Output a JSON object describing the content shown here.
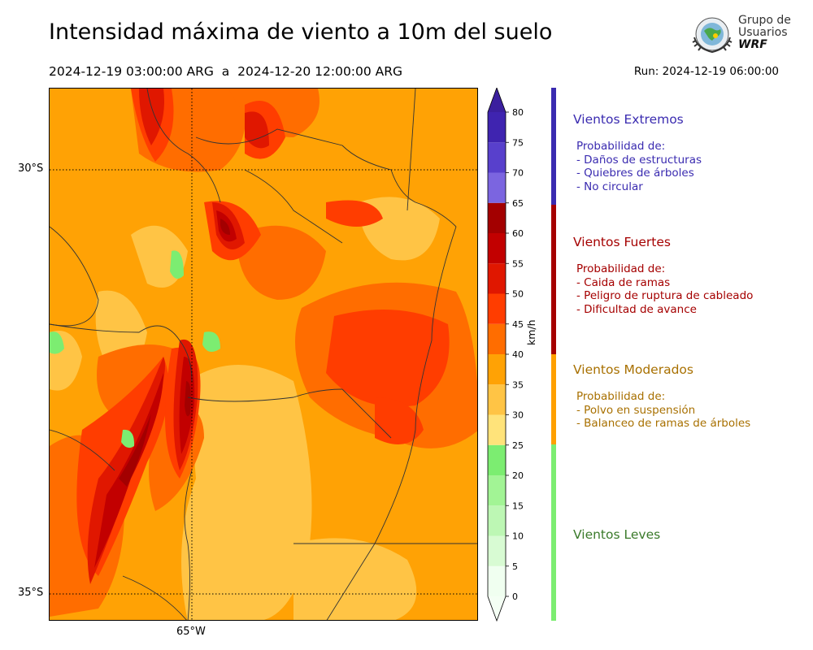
{
  "title": "Intensidad máxima de viento a 10m del suelo",
  "period": "2024-12-19 03:00:00 ARG  a  2024-12-20 12:00:00 ARG",
  "run": "Run: 2024-12-19 06:00:00",
  "logo": {
    "line1": "Grupo de",
    "line2": "Usuarios",
    "line3": "WRF"
  },
  "map": {
    "lat_labels": [
      "30°S",
      "35°S"
    ],
    "lon_labels": [
      "65°W"
    ],
    "background_level": 35
  },
  "chart_data": {
    "type": "heatmap",
    "title": "Intensidad máxima de viento a 10m del suelo",
    "colorbar_label": "km/h",
    "colorbar_range": [
      0,
      80
    ],
    "colorbar_ticks": [
      0,
      5,
      10,
      15,
      20,
      25,
      30,
      35,
      40,
      45,
      50,
      55,
      60,
      65,
      70,
      75,
      80
    ],
    "colorbar_extend": "both",
    "levels": [
      {
        "min": 0,
        "max": 5,
        "color": "#f0fff0"
      },
      {
        "min": 5,
        "max": 10,
        "color": "#d8fbd3"
      },
      {
        "min": 10,
        "max": 15,
        "color": "#bdf7b4"
      },
      {
        "min": 15,
        "max": 20,
        "color": "#a2f495"
      },
      {
        "min": 20,
        "max": 25,
        "color": "#7ced71"
      },
      {
        "min": 25,
        "max": 30,
        "color": "#ffe37a"
      },
      {
        "min": 30,
        "max": 35,
        "color": "#ffc445"
      },
      {
        "min": 35,
        "max": 40,
        "color": "#ffa205"
      },
      {
        "min": 40,
        "max": 45,
        "color": "#ff6d00"
      },
      {
        "min": 45,
        "max": 50,
        "color": "#ff3d00"
      },
      {
        "min": 50,
        "max": 55,
        "color": "#e01700"
      },
      {
        "min": 55,
        "max": 60,
        "color": "#c20000"
      },
      {
        "min": 60,
        "max": 65,
        "color": "#a30000"
      },
      {
        "min": 65,
        "max": 70,
        "color": "#7b65e0"
      },
      {
        "min": 70,
        "max": 75,
        "color": "#5840cc"
      },
      {
        "min": 75,
        "max": 80,
        "color": "#3f24b0"
      }
    ],
    "extend_low_color": "#f4fff4",
    "extend_high_color": "#3b1f9e",
    "lat_range": [
      "30°S",
      "35°S"
    ],
    "lon_label": "65°W",
    "grid": "dotted at 30°S, 35°S and 65°W"
  },
  "categories": [
    {
      "name": "Vientos Extremos",
      "color": "#3a2bb0",
      "header": "Probabilidad de:",
      "items": [
        "- Daños de estructuras",
        "- Quiebres de árboles",
        "- No circular"
      ]
    },
    {
      "name": "Vientos Fuertes",
      "color": "#a50000",
      "header": "Probabilidad de:",
      "items": [
        "- Caida de ramas",
        "- Peligro de ruptura de cableado",
        "- Dificultad de avance"
      ]
    },
    {
      "name": "Vientos Moderados",
      "color": "#a87000",
      "header": "Probabilidad de:",
      "items": [
        "- Polvo en suspensión",
        "- Balanceo de ramas de árboles"
      ]
    },
    {
      "name": "Vientos Leves",
      "color": "#3a7a2a",
      "header": "",
      "items": []
    }
  ],
  "category_bar_colors": [
    "#3a2bb0",
    "#a50000",
    "#ffa000",
    "#7ced71"
  ]
}
